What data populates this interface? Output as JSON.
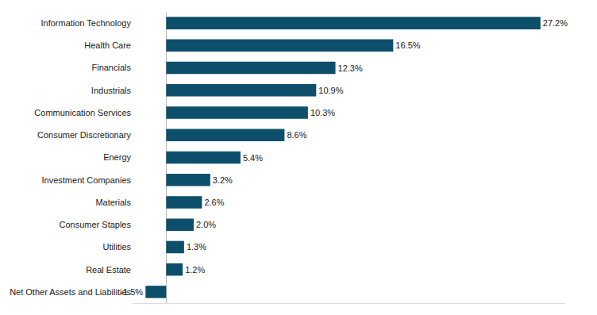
{
  "chart_data": {
    "type": "bar",
    "orientation": "horizontal",
    "categories": [
      "Information Technology",
      "Health Care",
      "Financials",
      "Industrials",
      "Communication Services",
      "Consumer Discretionary",
      "Energy",
      "Investment Companies",
      "Materials",
      "Consumer Staples",
      "Utilities",
      "Real Estate",
      "Net Other Assets and Liabilities"
    ],
    "values": [
      27.2,
      16.5,
      12.3,
      10.9,
      10.3,
      8.6,
      5.4,
      3.2,
      2.6,
      2.0,
      1.3,
      1.2,
      -1.5
    ],
    "value_labels": [
      "27.2%",
      "16.5%",
      "12.3%",
      "10.9%",
      "10.3%",
      "8.6%",
      "5.4%",
      "3.2%",
      "2.6%",
      "2.0%",
      "1.3%",
      "1.2%",
      "-1.5%"
    ],
    "data_labels": true,
    "color": "#0d4f6b",
    "xlim": [
      -2.5,
      29
    ],
    "tick_labels": "y",
    "grid": false
  }
}
